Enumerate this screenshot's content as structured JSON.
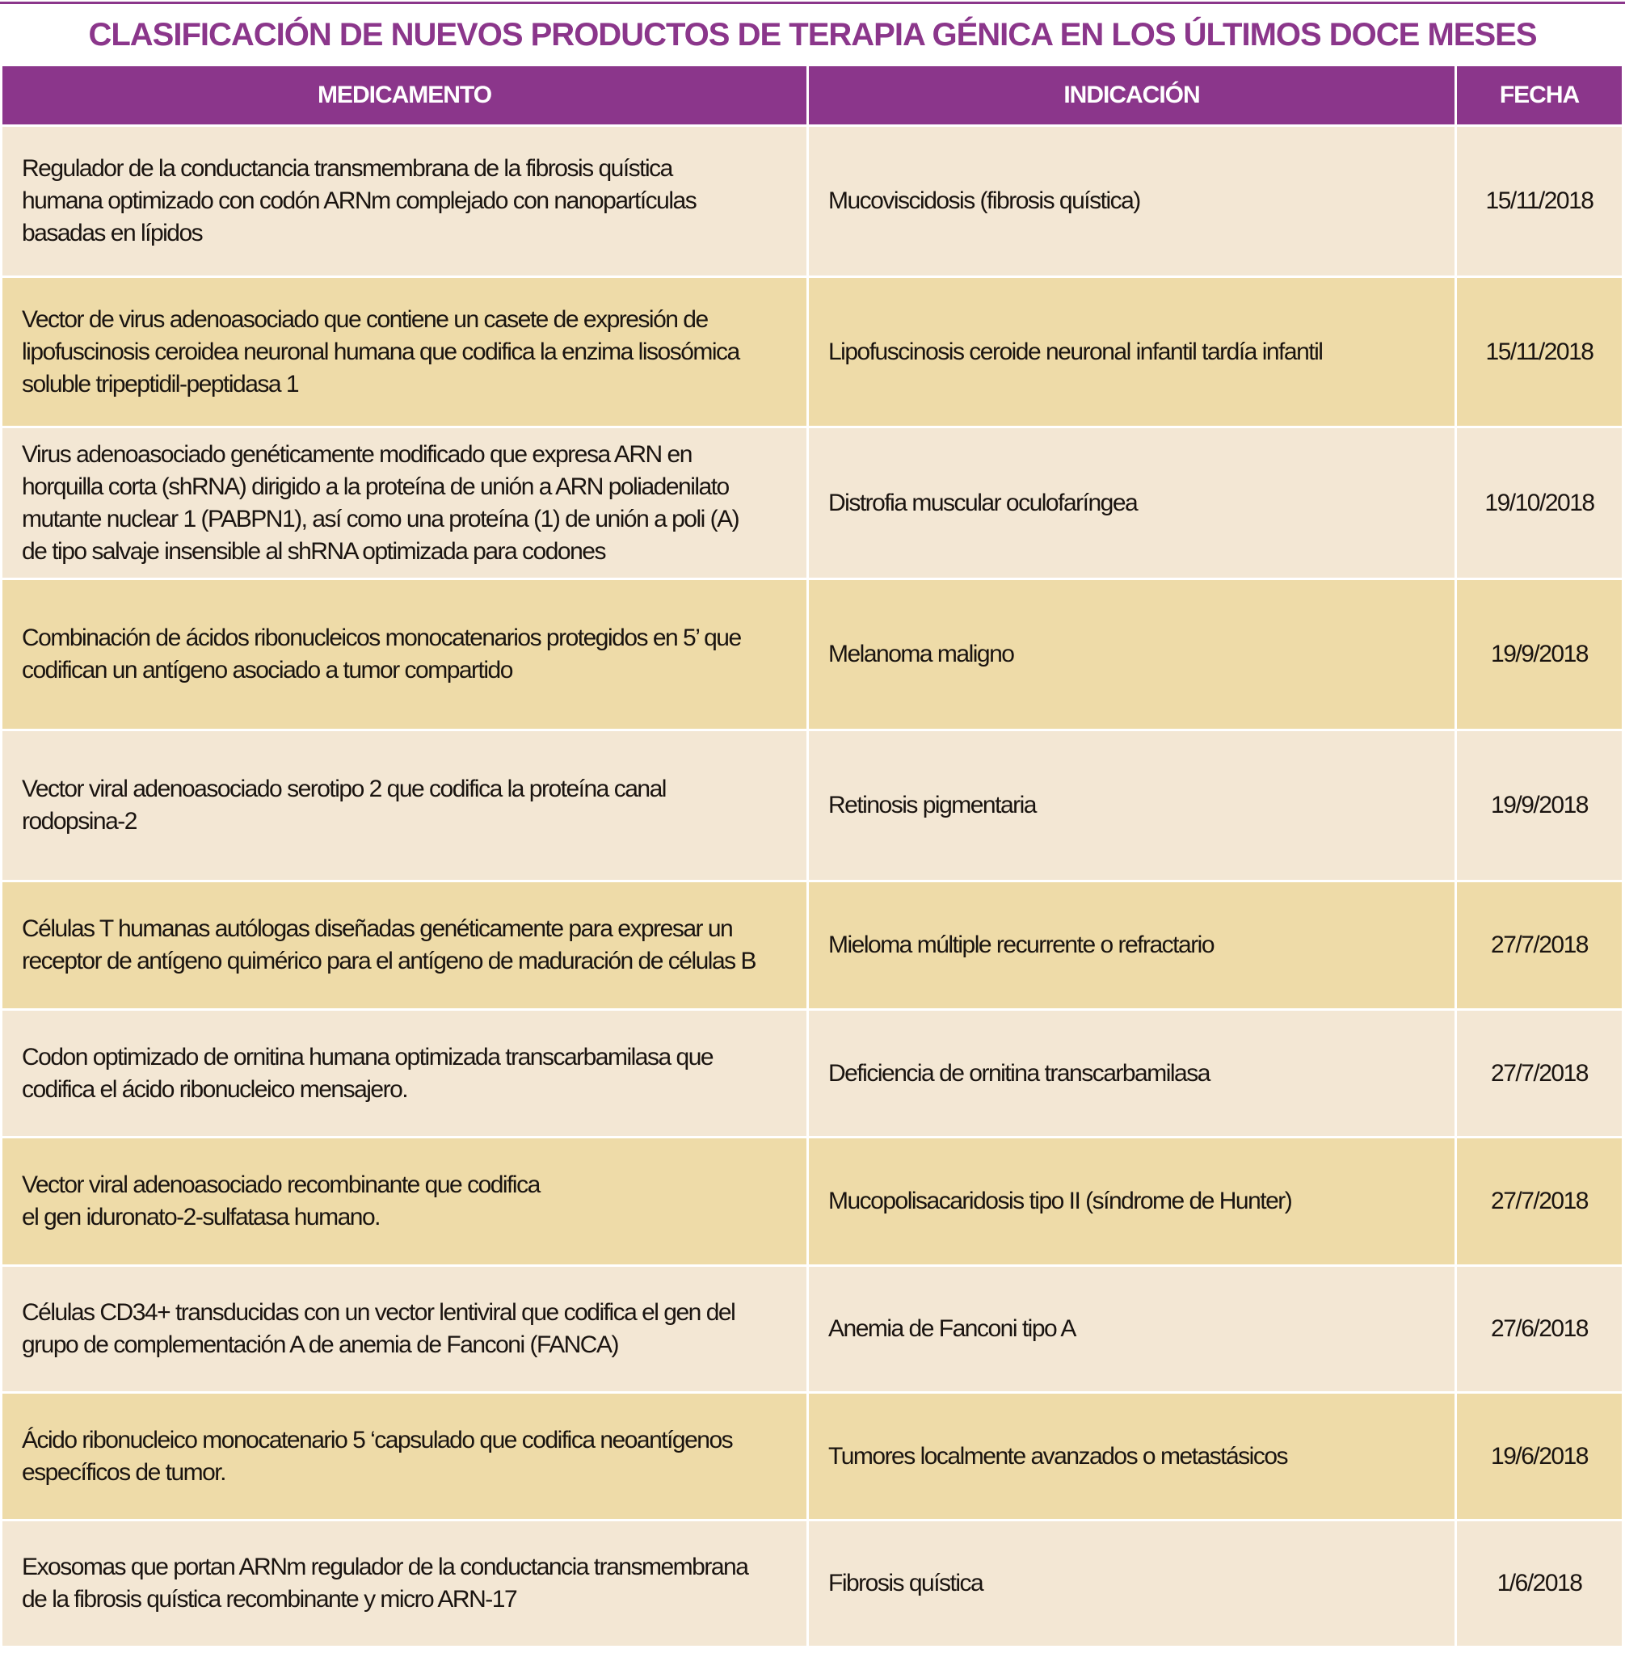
{
  "title": "CLASIFICACIÓN DE NUEVOS PRODUCTOS DE TERAPIA GÉNICA EN LOS ÚLTIMOS DOCE MESES",
  "colors": {
    "accent": "#8b368b",
    "row_light": "#f3e7d4",
    "row_dark": "#eedba8"
  },
  "table": {
    "headers": [
      "MEDICAMENTO",
      "INDICACIÓN",
      "FECHA"
    ],
    "rows": [
      {
        "medicamento": "Regulador de la conductancia transmembrana de la fibrosis quística\nhumana optimizado con codón ARNm complejado con nanopartículas\nbasadas en lípidos",
        "indicacion": "Mucoviscidosis (fibrosis quística)",
        "fecha": "15/11/2018"
      },
      {
        "medicamento": "Vector de virus adenoasociado que contiene un casete de expresión de\nlipofuscinosis ceroidea neuronal humana que codifica la enzima lisosómica\nsoluble tripeptidil-peptidasa 1",
        "indicacion": "Lipofuscinosis ceroide neuronal infantil tardía infantil",
        "fecha": "15/11/2018"
      },
      {
        "medicamento": "Virus adenoasociado genéticamente modificado que expresa ARN en\nhorquilla corta (shRNA) dirigido a la proteína de unión a ARN poliadenilato\nmutante nuclear 1 (PABPN1), así como una proteína (1) de unión a poli (A)\nde tipo salvaje insensible al shRNA optimizada para codones",
        "indicacion": "Distrofia muscular oculofaríngea",
        "fecha": "19/10/2018"
      },
      {
        "medicamento": "Combinación de ácidos ribonucleicos monocatenarios protegidos en 5’ que\ncodifican un antígeno asociado a tumor compartido",
        "indicacion": "Melanoma maligno",
        "fecha": "19/9/2018"
      },
      {
        "medicamento": "Vector viral adenoasociado serotipo 2 que codifica la proteína canal\nrodopsina-2",
        "indicacion": "Retinosis pigmentaria",
        "fecha": "19/9/2018"
      },
      {
        "medicamento": "Células T humanas autólogas diseñadas genéticamente para expresar un\nreceptor de antígeno quimérico para el antígeno de maduración de células B",
        "indicacion": "Mieloma múltiple recurrente o refractario",
        "fecha": "27/7/2018"
      },
      {
        "medicamento": "Codon optimizado de ornitina humana optimizada transcarbamilasa que\ncodifica el ácido ribonucleico mensajero.",
        "indicacion": "Deficiencia de ornitina transcarbamilasa",
        "fecha": "27/7/2018"
      },
      {
        "medicamento": "Vector viral adenoasociado recombinante que codifica\nel gen iduronato-2-sulfatasa humano.",
        "indicacion": "Mucopolisacaridosis tipo II (síndrome de Hunter)",
        "fecha": "27/7/2018"
      },
      {
        "medicamento": "Células CD34+ transducidas con un vector lentiviral que codifica el gen del\ngrupo de complementación A de anemia de Fanconi (FANCA)",
        "indicacion": "Anemia de Fanconi tipo A",
        "fecha": "27/6/2018"
      },
      {
        "medicamento": "Ácido ribonucleico monocatenario 5 ‘capsulado que codifica neoantígenos\nespecíficos de tumor.",
        "indicacion": "Tumores localmente avanzados o metastásicos",
        "fecha": "19/6/2018"
      },
      {
        "medicamento": "Exosomas que portan ARNm regulador de la conductancia transmembrana\nde la fibrosis quística recombinante y micro ARN-17",
        "indicacion": "Fibrosis quística",
        "fecha": "1/6/2018"
      }
    ]
  }
}
